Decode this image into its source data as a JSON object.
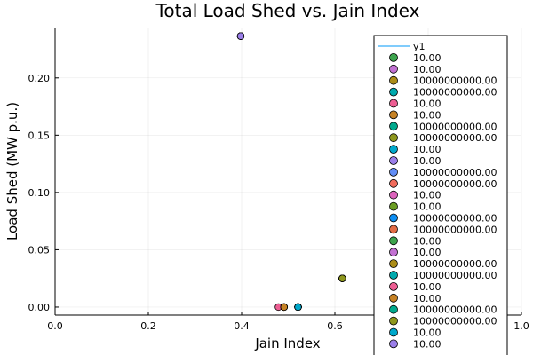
{
  "chart_data": {
    "type": "scatter",
    "title": "Total Load Shed vs. Jain Index",
    "xlabel": "Jain Index",
    "ylabel": "Load Shed (MW p.u.)",
    "xlim": [
      0.0,
      1.0
    ],
    "ylim": [
      -0.007,
      0.244
    ],
    "xticks": [
      0.0,
      0.2,
      0.4,
      0.6,
      0.8,
      1.0
    ],
    "xtick_labels": [
      "0.0",
      "0.2",
      "0.4",
      "0.6",
      "0.8",
      "1.0"
    ],
    "yticks": [
      0.0,
      0.05,
      0.1,
      0.15,
      0.2
    ],
    "ytick_labels": [
      "0.00",
      "0.05",
      "0.10",
      "0.15",
      "0.20"
    ],
    "grid": true,
    "legend_position": "right",
    "line_series": {
      "name": "y1",
      "color": "#009AFA"
    },
    "series": [
      {
        "name": "10.00",
        "color": "#3DA44D",
        "x": 0.398,
        "y": 0.2365
      },
      {
        "name": "10.00",
        "color": "#C271D2",
        "x": 0.398,
        "y": 0.2365
      },
      {
        "name": "10000000000.00",
        "color": "#AC8D18",
        "x": 0.616,
        "y": 0.025
      },
      {
        "name": "10000000000.00",
        "color": "#00A9AD",
        "x": 0.521,
        "y": 0.0
      },
      {
        "name": "10.00",
        "color": "#ED5E93",
        "x": 0.479,
        "y": 0.0
      },
      {
        "name": "10.00",
        "color": "#C68225",
        "x": 0.491,
        "y": 0.0
      },
      {
        "name": "10000000000.00",
        "color": "#00A98D",
        "x": 0.521,
        "y": 0.0
      },
      {
        "name": "10000000000.00",
        "color": "#8E971D",
        "x": 0.616,
        "y": 0.025
      },
      {
        "name": "10.00",
        "color": "#00A8CB",
        "x": 0.521,
        "y": 0.0
      },
      {
        "name": "10.00",
        "color": "#9B7FE9",
        "x": 0.398,
        "y": 0.2365
      },
      {
        "name": "10000000000.00",
        "color": "#618DF6",
        "x": 0.521,
        "y": 0.0
      },
      {
        "name": "10000000000.00",
        "color": "#F16C5C",
        "x": 0.491,
        "y": 0.0
      },
      {
        "name": "10.00",
        "color": "#DC63BC",
        "x": 0.398,
        "y": 0.2365
      },
      {
        "name": "10.00",
        "color": "#6B9D23",
        "x": 0.616,
        "y": 0.025
      },
      {
        "name": "10000000000.00",
        "color": "#0C8DF2",
        "x": 0.521,
        "y": 0.0
      },
      {
        "name": "10000000000.00",
        "color": "#E26B45",
        "x": 0.491,
        "y": 0.0
      },
      {
        "name": "10.00",
        "color": "#3DA44D",
        "x": 0.616,
        "y": 0.025
      },
      {
        "name": "10.00",
        "color": "#C271D2",
        "x": 0.398,
        "y": 0.2365
      },
      {
        "name": "10000000000.00",
        "color": "#AC8D18",
        "x": 0.616,
        "y": 0.025
      },
      {
        "name": "10000000000.00",
        "color": "#00A9AD",
        "x": 0.521,
        "y": 0.0
      },
      {
        "name": "10.00",
        "color": "#ED5E93",
        "x": 0.398,
        "y": 0.2365
      },
      {
        "name": "10.00",
        "color": "#C68225",
        "x": 0.491,
        "y": 0.0
      },
      {
        "name": "10000000000.00",
        "color": "#00A98D",
        "x": 0.521,
        "y": 0.0
      },
      {
        "name": "10000000000.00",
        "color": "#8E971D",
        "x": 0.616,
        "y": 0.025
      },
      {
        "name": "10.00",
        "color": "#00A8CB",
        "x": 0.521,
        "y": 0.0
      },
      {
        "name": "10.00",
        "color": "#9B7FE9",
        "x": 0.398,
        "y": 0.2365
      }
    ]
  }
}
